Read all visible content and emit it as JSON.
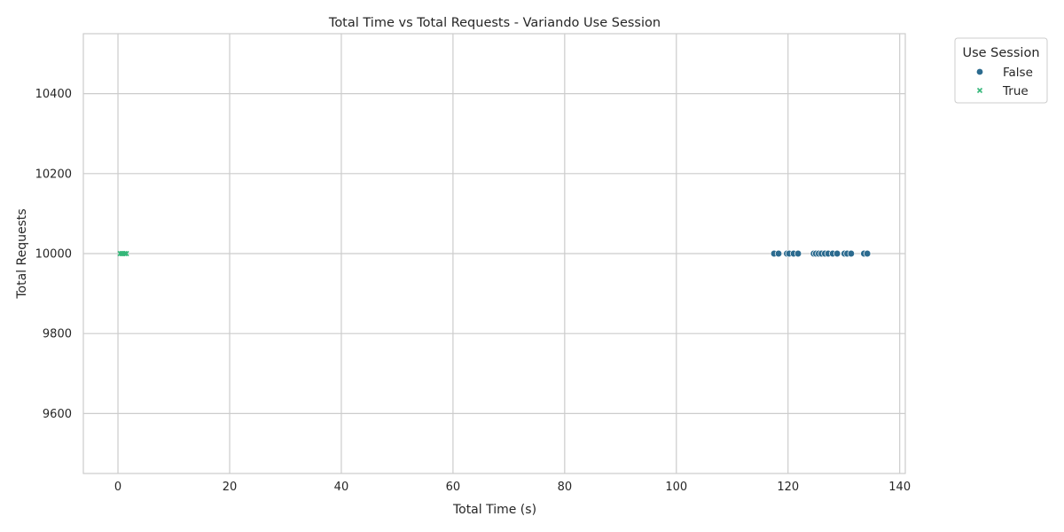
{
  "chart_data": {
    "type": "scatter",
    "title": "Total Time vs Total Requests - Variando Use Session",
    "xlabel": "Total Time (s)",
    "ylabel": "Total Requests",
    "xlim": [
      -6.2,
      141
    ],
    "ylim": [
      9450,
      10550
    ],
    "xticks": [
      0,
      20,
      40,
      60,
      80,
      100,
      120,
      140
    ],
    "yticks": [
      9600,
      9800,
      10000,
      10200,
      10400
    ],
    "grid": true,
    "legend": {
      "title": "Use Session",
      "placement": "outside-top-right"
    },
    "series": [
      {
        "name": "False",
        "marker": "circle",
        "color": "#2c6b8f",
        "x": [
          117.5,
          118.3,
          119.8,
          120.2,
          121.0,
          121.8,
          124.6,
          125.0,
          125.5,
          126.0,
          126.6,
          127.2,
          128.0,
          128.8,
          130.1,
          130.6,
          131.3,
          133.6,
          134.2
        ],
        "y": [
          10000,
          10000,
          10000,
          10000,
          10000,
          10000,
          10000,
          10000,
          10000,
          10000,
          10000,
          10000,
          10000,
          10000,
          10000,
          10000,
          10000,
          10000,
          10000
        ]
      },
      {
        "name": "True",
        "marker": "x",
        "color": "#35b779",
        "x": [
          0.4,
          0.7,
          0.9,
          1.2,
          1.5
        ],
        "y": [
          10000,
          10000,
          10000,
          10000,
          10000
        ]
      }
    ]
  }
}
